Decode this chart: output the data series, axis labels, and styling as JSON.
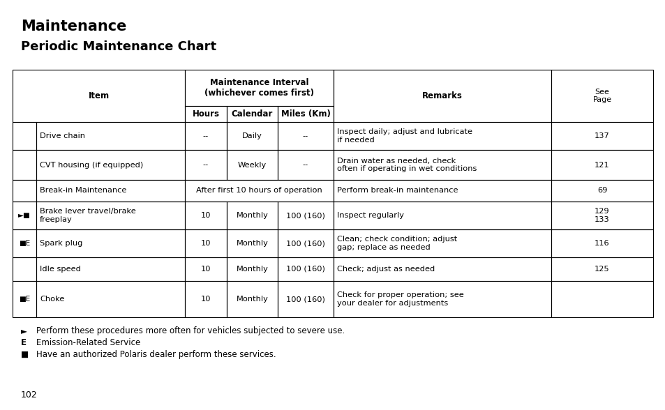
{
  "title1": "Maintenance",
  "title2": "Periodic Maintenance Chart",
  "background_color": "#ffffff",
  "rows": [
    {
      "symbol": "",
      "item": "Drive chain",
      "hours": "--",
      "calendar": "Daily",
      "miles": "--",
      "remarks": "Inspect daily; adjust and lubricate\nif needed",
      "page": "137",
      "span": false
    },
    {
      "symbol": "",
      "item": "CVT housing (if equipped)",
      "hours": "--",
      "calendar": "Weekly",
      "miles": "--",
      "remarks": "Drain water as needed, check\noften if operating in wet conditions",
      "page": "121",
      "span": false
    },
    {
      "symbol": "",
      "item": "Break-in Maintenance",
      "hours": "",
      "calendar": "After first 10 hours of operation",
      "miles": "",
      "remarks": "Perform break-in maintenance",
      "page": "69",
      "span": true
    },
    {
      "symbol": "►■",
      "item": "Brake lever travel/brake\nfreeplay",
      "hours": "10",
      "calendar": "Monthly",
      "miles": "100 (160)",
      "remarks": "Inspect regularly",
      "page": "129\n133",
      "span": false
    },
    {
      "symbol": "■E",
      "item": "Spark plug",
      "hours": "10",
      "calendar": "Monthly",
      "miles": "100 (160)",
      "remarks": "Clean; check condition; adjust\ngap; replace as needed",
      "page": "116",
      "span": false
    },
    {
      "symbol": "",
      "item": "Idle speed",
      "hours": "10",
      "calendar": "Monthly",
      "miles": "100 (160)",
      "remarks": "Check; adjust as needed",
      "page": "125",
      "span": false
    },
    {
      "symbol": "■E",
      "item": "Choke",
      "hours": "10",
      "calendar": "Monthly",
      "miles": "100 (160)",
      "remarks": "Check for proper operation; see\nyour dealer for adjustments",
      "page": "",
      "span": false
    }
  ],
  "footnotes": [
    [
      "►",
      "Perform these procedures more often for vehicles subjected to severe use.",
      false
    ],
    [
      "E",
      "Emission-Related Service",
      true
    ],
    [
      "■",
      "Have an authorized Polaris dealer perform these services.",
      false
    ]
  ],
  "page_number": "102"
}
